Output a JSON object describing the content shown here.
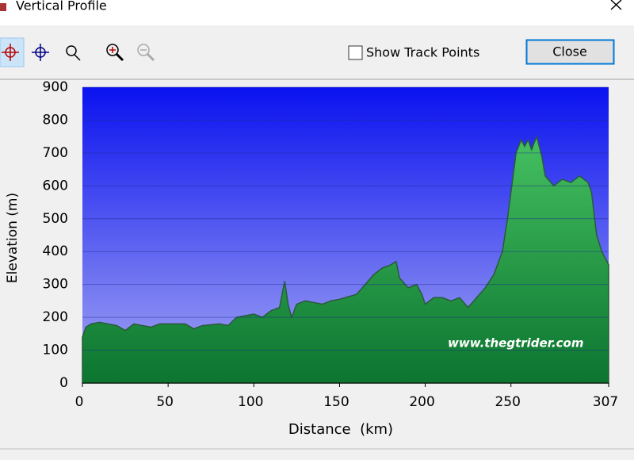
{
  "window": {
    "title": "Vertical Profile"
  },
  "toolbar": {
    "checkbox_label": "Show Track Points",
    "button": "Close"
  },
  "chart_data": {
    "type": "area",
    "xlabel": "Distance  (km)",
    "ylabel": "Elevation (m)",
    "annotation": "www.thegtrider.com",
    "x": [
      0,
      2,
      5,
      10,
      20,
      25,
      30,
      40,
      45,
      50,
      60,
      65,
      70,
      80,
      85,
      90,
      100,
      105,
      110,
      115,
      118,
      120,
      122,
      125,
      130,
      140,
      145,
      150,
      160,
      165,
      170,
      175,
      180,
      183,
      185,
      190,
      195,
      198,
      200,
      205,
      210,
      215,
      220,
      225,
      230,
      235,
      240,
      245,
      248,
      250,
      253,
      256,
      258,
      260,
      262,
      265,
      268,
      270,
      275,
      280,
      285,
      290,
      295,
      297,
      300,
      303,
      307
    ],
    "values": [
      140,
      170,
      180,
      185,
      175,
      160,
      180,
      170,
      180,
      180,
      180,
      165,
      175,
      180,
      175,
      200,
      210,
      200,
      220,
      230,
      310,
      240,
      200,
      240,
      250,
      240,
      250,
      255,
      270,
      300,
      330,
      350,
      360,
      370,
      320,
      290,
      300,
      270,
      240,
      260,
      260,
      250,
      260,
      230,
      260,
      290,
      330,
      400,
      500,
      580,
      700,
      740,
      720,
      740,
      710,
      750,
      690,
      630,
      600,
      620,
      610,
      630,
      610,
      580,
      450,
      400,
      360
    ],
    "color": "#1f9a42",
    "xlim": [
      0,
      307
    ],
    "xticks": [
      0,
      50,
      100,
      150,
      200,
      250,
      307
    ],
    "ylim": [
      0,
      900
    ],
    "yticks": [
      0,
      100,
      200,
      300,
      400,
      500,
      600,
      700,
      800,
      900
    ],
    "grid": true
  }
}
